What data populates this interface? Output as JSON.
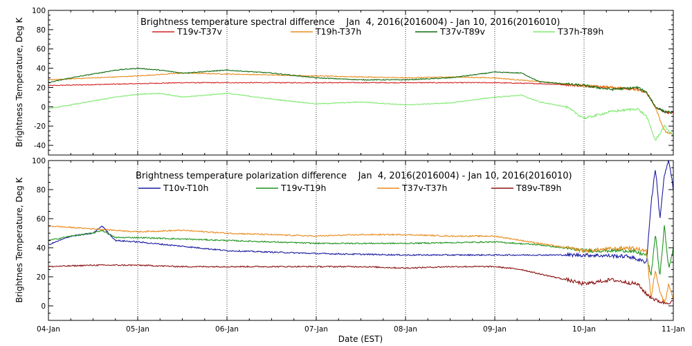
{
  "chart_data": [
    {
      "type": "line",
      "title": "Brightness temperature spectral difference    Jan  4, 2016(2016004) - Jan 10, 2016(2016010)",
      "ylabel": "Brightness Temperature, Deg K",
      "xlabel": "",
      "ylim": [
        -50,
        100
      ],
      "yticks": [
        -40,
        -20,
        0,
        20,
        40,
        60,
        80,
        100
      ],
      "xlim": [
        0,
        7
      ],
      "xticks": [
        "04-Jan",
        "05-Jan",
        "06-Jan",
        "07-Jan",
        "08-Jan",
        "09-Jan",
        "10-Jan",
        "11-Jan"
      ],
      "grid": true,
      "series": [
        {
          "name": "T19v-T37v",
          "color": "#d42020",
          "x": [
            0,
            0.5,
            1,
            1.5,
            2,
            2.5,
            3,
            3.5,
            4,
            4.5,
            5,
            5.5,
            6,
            6.3,
            6.6,
            6.7,
            6.8,
            6.9,
            7
          ],
          "y": [
            22,
            23,
            24,
            25,
            25,
            25,
            25,
            25,
            25,
            25,
            25,
            24,
            22,
            20,
            18,
            15,
            0,
            -5,
            -7
          ]
        },
        {
          "name": "T19h-T37h",
          "color": "#e88a1c",
          "x": [
            0,
            0.5,
            1,
            1.5,
            2,
            2.5,
            3,
            3.5,
            4,
            4.5,
            5,
            5.5,
            6,
            6.3,
            6.6,
            6.7,
            6.8,
            6.9,
            7
          ],
          "y": [
            28,
            30,
            32,
            35,
            34,
            33,
            32,
            31,
            30,
            31,
            30,
            26,
            22,
            20,
            18,
            15,
            0,
            -25,
            -30
          ]
        },
        {
          "name": "T37v-T89v",
          "color": "#0d6b0d",
          "x": [
            0,
            0.25,
            0.5,
            0.75,
            1,
            1.25,
            1.5,
            2,
            2.5,
            3,
            3.5,
            4,
            4.5,
            5,
            5.3,
            5.5,
            6,
            6.3,
            6.6,
            6.7,
            6.8,
            6.9,
            7
          ],
          "y": [
            25,
            30,
            34,
            38,
            40,
            38,
            35,
            38,
            35,
            30,
            28,
            28,
            30,
            36,
            35,
            26,
            22,
            18,
            20,
            15,
            0,
            -5,
            -6
          ]
        },
        {
          "name": "T37h-T89h",
          "color": "#7eea6e",
          "x": [
            0,
            0.25,
            0.5,
            0.75,
            1,
            1.25,
            1.5,
            2,
            2.5,
            3,
            3.5,
            4,
            4.5,
            5,
            5.3,
            5.5,
            5.8,
            6,
            6.3,
            6.6,
            6.7,
            6.8,
            6.9,
            7
          ],
          "y": [
            -2,
            2,
            6,
            10,
            13,
            14,
            10,
            14,
            8,
            3,
            5,
            2,
            4,
            10,
            12,
            5,
            0,
            -12,
            -5,
            -2,
            -10,
            -35,
            -20,
            -30
          ]
        }
      ]
    },
    {
      "type": "line",
      "title": "Brightness temperature polarization difference    Jan  4, 2016(2016004) - Jan 10, 2016(2016010)",
      "ylabel": "Brightnes Temperature, Deg K",
      "xlabel": "Date (EST)",
      "ylim": [
        -10,
        100
      ],
      "yticks": [
        0,
        20,
        40,
        60,
        80,
        100
      ],
      "xlim": [
        0,
        7
      ],
      "xticks": [
        "04-Jan",
        "05-Jan",
        "06-Jan",
        "07-Jan",
        "08-Jan",
        "09-Jan",
        "10-Jan",
        "11-Jan"
      ],
      "grid": true,
      "series": [
        {
          "name": "T10v-T10h",
          "color": "#1a1aa0",
          "x": [
            0,
            0.25,
            0.5,
            0.6,
            0.75,
            1,
            1.5,
            2,
            2.5,
            3,
            4,
            5,
            5.5,
            6,
            6.5,
            6.7,
            6.75,
            6.8,
            6.85,
            6.9,
            6.95,
            7
          ],
          "y": [
            42,
            48,
            50,
            55,
            45,
            44,
            41,
            38,
            37,
            36,
            35,
            35,
            35,
            35,
            34,
            30,
            70,
            95,
            60,
            90,
            100,
            80
          ]
        },
        {
          "name": "T19v-T19h",
          "color": "#1f941f",
          "x": [
            0,
            0.25,
            0.5,
            0.6,
            0.75,
            1,
            1.5,
            2,
            2.5,
            3,
            4,
            5,
            5.5,
            6,
            6.5,
            6.7,
            6.75,
            6.8,
            6.85,
            6.9,
            6.95,
            7
          ],
          "y": [
            45,
            48,
            50,
            52,
            47,
            47,
            46,
            45,
            44,
            43,
            43,
            44,
            42,
            38,
            38,
            35,
            20,
            50,
            20,
            55,
            25,
            40
          ]
        },
        {
          "name": "T37v-T37h",
          "color": "#e88a1c",
          "x": [
            0,
            0.25,
            0.5,
            0.75,
            1,
            1.5,
            2,
            2.5,
            3,
            3.5,
            4,
            4.5,
            5,
            5.5,
            6,
            6.5,
            6.7,
            6.75,
            6.8,
            6.85,
            6.9,
            6.95,
            7
          ],
          "y": [
            55,
            54,
            53,
            52,
            51,
            52,
            50,
            49,
            48,
            49,
            49,
            48,
            48,
            43,
            38,
            40,
            38,
            5,
            25,
            10,
            2,
            15,
            5
          ]
        },
        {
          "name": "T89v-T89h",
          "color": "#8a1010",
          "x": [
            0,
            0.5,
            1,
            1.5,
            2,
            2.5,
            3,
            3.5,
            4,
            4.5,
            5,
            5.3,
            5.5,
            5.8,
            6,
            6.3,
            6.6,
            6.7,
            6.8,
            6.9,
            7
          ],
          "y": [
            27,
            28,
            28,
            27,
            27,
            27,
            27,
            27,
            26,
            27,
            27,
            25,
            22,
            18,
            15,
            18,
            15,
            8,
            4,
            2,
            3
          ]
        }
      ]
    }
  ]
}
